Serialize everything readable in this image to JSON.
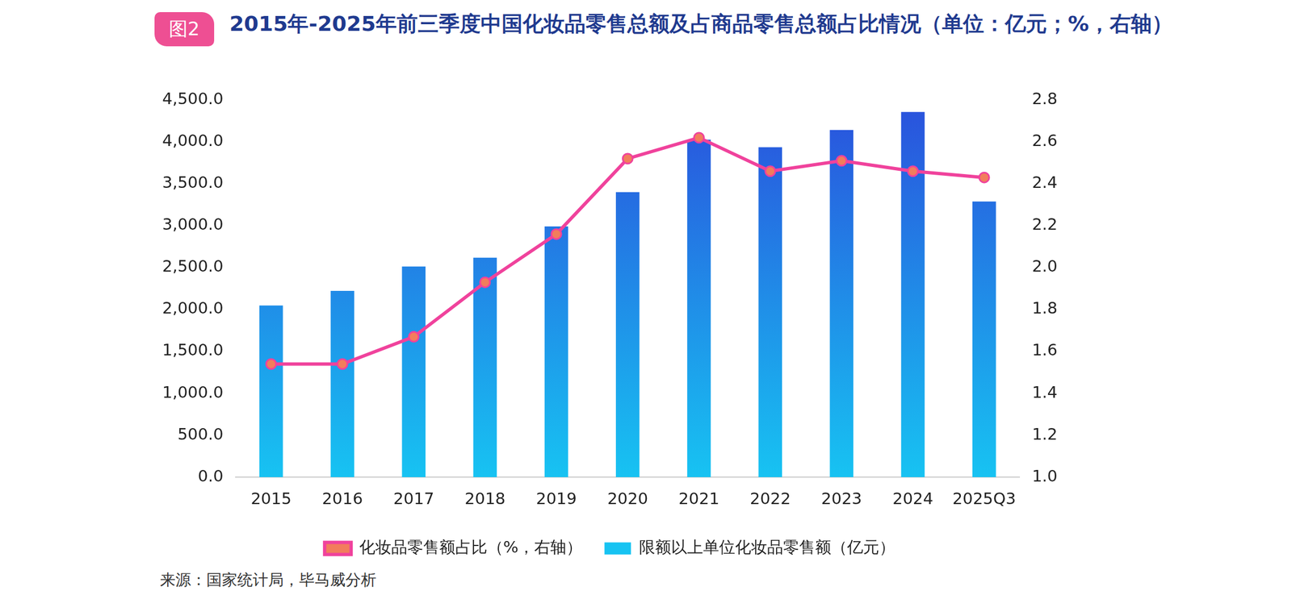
{
  "chart_data": {
    "type": "bar",
    "badge": "图2",
    "title": "2015年-2025年前三季度中国化妆品零售总额及占商品零售总额占比情况（单位：亿元；%，右轴）",
    "source": "来源：国家统计局，毕马威分析",
    "categories": [
      "2015",
      "2016",
      "2017",
      "2018",
      "2019",
      "2020",
      "2021",
      "2022",
      "2023",
      "2024",
      "2025Q3"
    ],
    "series": [
      {
        "name": "限额以上单位化妆品零售额（亿元）",
        "type": "bar",
        "color": "#2a50dc",
        "values": [
          2049,
          2222,
          2514,
          2619,
          2992,
          3400,
          4026,
          3936,
          4142,
          4357,
          3288
        ]
      },
      {
        "name": "化妆品零售额占比（%，右轴）",
        "type": "line",
        "axis": "y2",
        "color": "#f0429c",
        "marker": "circle",
        "values": [
          1.54,
          1.54,
          1.67,
          1.93,
          2.16,
          2.52,
          2.62,
          2.46,
          2.51,
          2.46,
          2.43
        ]
      }
    ],
    "ylim": [
      0,
      4500
    ],
    "yticks": [
      {
        "value": 0,
        "label": "0.0"
      },
      {
        "value": 500,
        "label": "500.0"
      },
      {
        "value": 1000,
        "label": "1,000.0"
      },
      {
        "value": 1500,
        "label": "1,500.0"
      },
      {
        "value": 2000,
        "label": "2,000.0"
      },
      {
        "value": 2500,
        "label": "2,500.0"
      },
      {
        "value": 3000,
        "label": "3,000.0"
      },
      {
        "value": 3500,
        "label": "3,500.0"
      },
      {
        "value": 4000,
        "label": "4,000.0"
      },
      {
        "value": 4500,
        "label": "4,500.0"
      }
    ],
    "y2lim": [
      1.0,
      2.8
    ],
    "y2ticks": [
      {
        "value": 1.0,
        "label": "1.0"
      },
      {
        "value": 1.2,
        "label": "1.2"
      },
      {
        "value": 1.4,
        "label": "1.4"
      },
      {
        "value": 1.6,
        "label": "1.6"
      },
      {
        "value": 1.8,
        "label": "1.8"
      },
      {
        "value": 2.0,
        "label": "2.0"
      },
      {
        "value": 2.2,
        "label": "2.2"
      },
      {
        "value": 2.4,
        "label": "2.4"
      },
      {
        "value": 2.6,
        "label": "2.6"
      },
      {
        "value": 2.8,
        "label": "2.8"
      }
    ],
    "grid": false,
    "legend": "bottom"
  }
}
